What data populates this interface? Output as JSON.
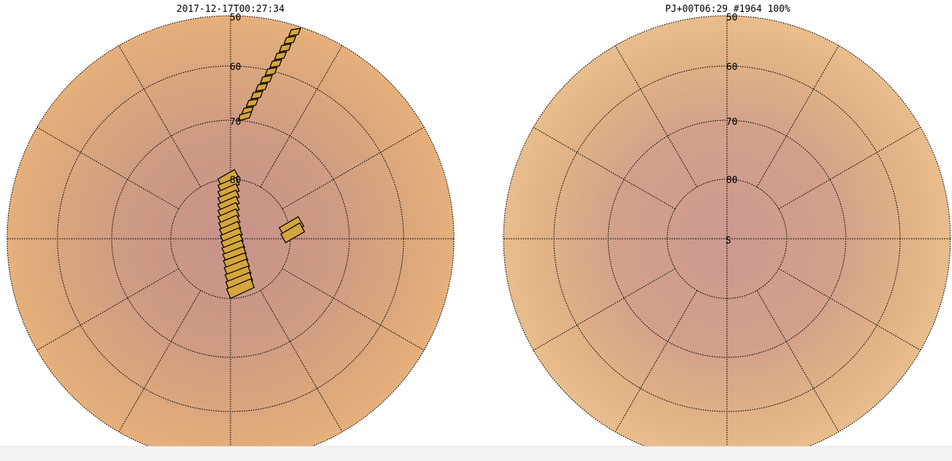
{
  "left_panel": {
    "title": "2017-12-17T00:27:34",
    "lat_labels": [
      "50",
      "60",
      "70",
      "80"
    ],
    "footprint_color": "#d4a53c"
  },
  "right_panel": {
    "title": "PJ+00T06:29 #1964 100%",
    "lat_labels": [
      "50",
      "60",
      "70",
      "80"
    ],
    "pole_label": "S"
  },
  "colors": {
    "planet_outer": "#e3ad7c",
    "planet_inner": "#c99583",
    "grid": "#000000",
    "footprint_fill": "#d4a53c",
    "footprint_stroke": "#000000"
  }
}
